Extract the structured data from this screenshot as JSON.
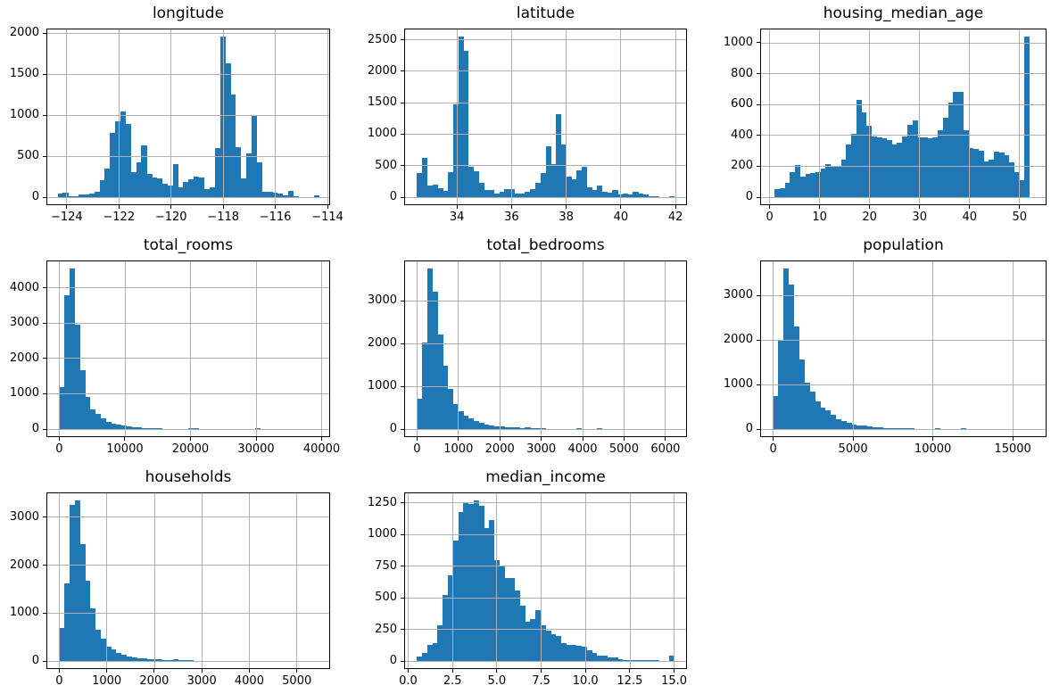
{
  "figure": {
    "background": "#ffffff",
    "bar_color": "#1f77b4",
    "grid_color": "#b0b0b0",
    "spine_color": "#000000",
    "text_color": "#000000",
    "grid": true,
    "legend": "none"
  },
  "chart_data": [
    {
      "type": "bar",
      "id": "longitude",
      "title": "longitude",
      "xlim": [
        -124.78,
        -113.9
      ],
      "ylim": [
        -98,
        2058
      ],
      "xticks": [
        {
          "v": -124,
          "label": "−124"
        },
        {
          "v": -122,
          "label": "−122"
        },
        {
          "v": -120,
          "label": "−120"
        },
        {
          "v": -118,
          "label": "−118"
        },
        {
          "v": -116,
          "label": "−116"
        },
        {
          "v": -114,
          "label": "−114"
        }
      ],
      "yticks": [
        {
          "v": 0,
          "label": "0"
        },
        {
          "v": 500,
          "label": "500"
        },
        {
          "v": 1000,
          "label": "1000"
        },
        {
          "v": 1500,
          "label": "1500"
        },
        {
          "v": 2000,
          "label": "2000"
        }
      ],
      "bin_start": -124.35,
      "bin_width": 0.2008,
      "counts": [
        45,
        55,
        15,
        10,
        30,
        35,
        45,
        65,
        205,
        350,
        780,
        925,
        1050,
        890,
        300,
        430,
        630,
        280,
        245,
        230,
        160,
        140,
        400,
        120,
        180,
        220,
        250,
        240,
        100,
        120,
        600,
        1960,
        1630,
        1250,
        610,
        230,
        530,
        1000,
        420,
        60,
        70,
        55,
        40,
        25,
        80,
        10,
        5,
        0,
        5,
        25
      ]
    },
    {
      "type": "bar",
      "id": "latitude",
      "title": "latitude",
      "xlim": [
        32.07,
        42.42
      ],
      "ylim": [
        -127.5,
        2677.5
      ],
      "xticks": [
        {
          "v": 34,
          "label": "34"
        },
        {
          "v": 36,
          "label": "36"
        },
        {
          "v": 38,
          "label": "38"
        },
        {
          "v": 40,
          "label": "40"
        },
        {
          "v": 42,
          "label": "42"
        }
      ],
      "yticks": [
        {
          "v": 0,
          "label": "0"
        },
        {
          "v": 500,
          "label": "500"
        },
        {
          "v": 1000,
          "label": "1000"
        },
        {
          "v": 1500,
          "label": "1500"
        },
        {
          "v": 2000,
          "label": "2000"
        },
        {
          "v": 2500,
          "label": "2500"
        }
      ],
      "bin_start": 32.54,
      "bin_width": 0.1882,
      "counts": [
        380,
        630,
        190,
        200,
        140,
        100,
        400,
        1480,
        2550,
        2320,
        480,
        410,
        220,
        120,
        110,
        60,
        80,
        130,
        130,
        60,
        50,
        90,
        130,
        230,
        380,
        810,
        520,
        1320,
        840,
        320,
        290,
        430,
        480,
        150,
        120,
        190,
        90,
        70,
        110,
        40,
        60,
        40,
        80,
        60,
        45,
        20,
        10,
        5,
        5,
        10
      ]
    },
    {
      "type": "bar",
      "id": "housing_median_age",
      "title": "housing_median_age",
      "xlim": [
        -1.9,
        55.4
      ],
      "ylim": [
        -52,
        1092
      ],
      "xticks": [
        {
          "v": 0,
          "label": "0"
        },
        {
          "v": 10,
          "label": "10"
        },
        {
          "v": 20,
          "label": "20"
        },
        {
          "v": 30,
          "label": "30"
        },
        {
          "v": 40,
          "label": "40"
        },
        {
          "v": 50,
          "label": "50"
        }
      ],
      "yticks": [
        {
          "v": 0,
          "label": "0"
        },
        {
          "v": 200,
          "label": "200"
        },
        {
          "v": 400,
          "label": "400"
        },
        {
          "v": 600,
          "label": "600"
        },
        {
          "v": 800,
          "label": "800"
        },
        {
          "v": 1000,
          "label": "1000"
        }
      ],
      "bin_start": 1.0,
      "bin_width": 1.02,
      "counts": [
        50,
        55,
        90,
        160,
        210,
        135,
        150,
        155,
        160,
        185,
        215,
        205,
        200,
        245,
        340,
        410,
        630,
        550,
        460,
        395,
        390,
        380,
        370,
        340,
        355,
        395,
        470,
        495,
        390,
        385,
        380,
        390,
        435,
        515,
        615,
        680,
        680,
        435,
        320,
        310,
        300,
        230,
        245,
        295,
        290,
        270,
        225,
        160,
        110,
        1040
      ]
    },
    {
      "type": "bar",
      "id": "total_rooms",
      "title": "total_rooms",
      "xlim": [
        -1964,
        41286
      ],
      "ylim": [
        -227.5,
        4777.5
      ],
      "xticks": [
        {
          "v": 0,
          "label": "0"
        },
        {
          "v": 10000,
          "label": "10000"
        },
        {
          "v": 20000,
          "label": "20000"
        },
        {
          "v": 30000,
          "label": "30000"
        },
        {
          "v": 40000,
          "label": "40000"
        }
      ],
      "yticks": [
        {
          "v": 0,
          "label": "0"
        },
        {
          "v": 1000,
          "label": "1000"
        },
        {
          "v": 2000,
          "label": "2000"
        },
        {
          "v": 3000,
          "label": "3000"
        },
        {
          "v": 4000,
          "label": "4000"
        }
      ],
      "bin_start": 2,
      "bin_width": 786.4,
      "counts": [
        1180,
        3780,
        4550,
        2950,
        1670,
        920,
        550,
        430,
        310,
        200,
        150,
        120,
        100,
        70,
        50,
        40,
        30,
        25,
        20,
        15,
        12,
        10,
        8,
        6,
        5,
        20,
        25,
        4,
        3,
        3,
        2,
        2,
        2,
        1,
        1,
        1,
        1,
        1,
        30,
        1,
        0,
        0,
        0,
        0,
        0,
        0,
        0,
        0,
        0,
        2
      ]
    },
    {
      "type": "bar",
      "id": "total_bedrooms",
      "title": "total_bedrooms",
      "xlim": [
        -310,
        6520
      ],
      "ylim": [
        -188,
        3948
      ],
      "xticks": [
        {
          "v": 0,
          "label": "0"
        },
        {
          "v": 1000,
          "label": "1000"
        },
        {
          "v": 2000,
          "label": "2000"
        },
        {
          "v": 3000,
          "label": "3000"
        },
        {
          "v": 4000,
          "label": "4000"
        },
        {
          "v": 5000,
          "label": "5000"
        },
        {
          "v": 6000,
          "label": "6000"
        }
      ],
      "yticks": [
        {
          "v": 0,
          "label": "0"
        },
        {
          "v": 1000,
          "label": "1000"
        },
        {
          "v": 2000,
          "label": "2000"
        },
        {
          "v": 3000,
          "label": "3000"
        }
      ],
      "bin_start": 1,
      "bin_width": 124.2,
      "counts": [
        700,
        2020,
        3760,
        3220,
        2210,
        1480,
        950,
        580,
        420,
        310,
        250,
        180,
        150,
        110,
        80,
        60,
        55,
        50,
        45,
        40,
        25,
        45,
        20,
        15,
        12,
        10,
        8,
        6,
        5,
        5,
        4,
        25,
        3,
        3,
        2,
        25,
        2,
        1,
        1,
        1,
        1,
        1,
        0,
        0,
        0,
        0,
        0,
        0,
        0,
        1
      ]
    },
    {
      "type": "bar",
      "id": "population",
      "title": "population",
      "xlim": [
        -815,
        17115
      ],
      "ylim": [
        -180,
        3780
      ],
      "xticks": [
        {
          "v": 0,
          "label": "0"
        },
        {
          "v": 5000,
          "label": "5000"
        },
        {
          "v": 10000,
          "label": "10000"
        },
        {
          "v": 15000,
          "label": "15000"
        }
      ],
      "yticks": [
        {
          "v": 0,
          "label": "0"
        },
        {
          "v": 1000,
          "label": "1000"
        },
        {
          "v": 2000,
          "label": "2000"
        },
        {
          "v": 3000,
          "label": "3000"
        }
      ],
      "bin_start": 3,
      "bin_width": 326,
      "counts": [
        750,
        1980,
        3600,
        3250,
        2300,
        1570,
        1050,
        850,
        620,
        480,
        420,
        320,
        230,
        180,
        150,
        100,
        80,
        90,
        60,
        50,
        40,
        30,
        25,
        30,
        20,
        15,
        12,
        10,
        8,
        6,
        5,
        20,
        4,
        3,
        2,
        2,
        20,
        1,
        1,
        1,
        0,
        0,
        0,
        0,
        0,
        1,
        0,
        0,
        0,
        1
      ]
    },
    {
      "type": "bar",
      "id": "households",
      "title": "households",
      "xlim": [
        -270,
        5700
      ],
      "ylim": [
        -167.5,
        3517.5
      ],
      "xticks": [
        {
          "v": 0,
          "label": "0"
        },
        {
          "v": 1000,
          "label": "1000"
        },
        {
          "v": 2000,
          "label": "2000"
        },
        {
          "v": 3000,
          "label": "3000"
        },
        {
          "v": 4000,
          "label": "4000"
        },
        {
          "v": 5000,
          "label": "5000"
        }
      ],
      "yticks": [
        {
          "v": 0,
          "label": "0"
        },
        {
          "v": 1000,
          "label": "1000"
        },
        {
          "v": 2000,
          "label": "2000"
        },
        {
          "v": 3000,
          "label": "3000"
        }
      ],
      "bin_start": 1,
      "bin_width": 108.6,
      "counts": [
        690,
        1620,
        3260,
        3350,
        2430,
        1670,
        1100,
        660,
        460,
        300,
        240,
        160,
        130,
        100,
        80,
        60,
        50,
        40,
        35,
        30,
        25,
        20,
        30,
        15,
        12,
        10,
        8,
        6,
        5,
        4,
        3,
        3,
        2,
        2,
        1,
        1,
        1,
        1,
        1,
        0,
        0,
        0,
        0,
        0,
        0,
        0,
        0,
        0,
        0,
        1
      ]
    },
    {
      "type": "bar",
      "id": "median_income",
      "title": "median_income",
      "xlim": [
        -0.225,
        15.725
      ],
      "ylim": [
        -63.5,
        1333.5
      ],
      "xticks": [
        {
          "v": 0,
          "label": "0.0"
        },
        {
          "v": 2.5,
          "label": "2.5"
        },
        {
          "v": 5,
          "label": "5.0"
        },
        {
          "v": 7.5,
          "label": "7.5"
        },
        {
          "v": 10,
          "label": "10.0"
        },
        {
          "v": 12.5,
          "label": "12.5"
        },
        {
          "v": 15,
          "label": "15.0"
        }
      ],
      "yticks": [
        {
          "v": 0,
          "label": "0"
        },
        {
          "v": 250,
          "label": "250"
        },
        {
          "v": 500,
          "label": "500"
        },
        {
          "v": 750,
          "label": "750"
        },
        {
          "v": 1000,
          "label": "1000"
        },
        {
          "v": 1250,
          "label": "1250"
        }
      ],
      "bin_start": 0.4999,
      "bin_width": 0.29,
      "counts": [
        35,
        60,
        130,
        140,
        280,
        520,
        680,
        950,
        1180,
        1250,
        1240,
        1270,
        1230,
        1050,
        1115,
        800,
        755,
        655,
        655,
        560,
        440,
        310,
        335,
        400,
        280,
        240,
        215,
        200,
        140,
        125,
        130,
        120,
        110,
        85,
        65,
        45,
        40,
        30,
        25,
        15,
        10,
        10,
        10,
        10,
        5,
        8,
        5,
        3,
        2,
        45
      ]
    }
  ]
}
